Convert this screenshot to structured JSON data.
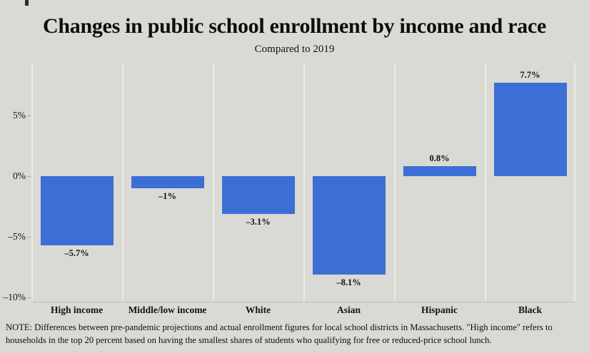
{
  "chart_data": {
    "type": "bar",
    "title": "Changes in public school enrollment by income and race",
    "subtitle": "Compared to 2019",
    "categories": [
      "High income",
      "Middle/low income",
      "White",
      "Asian",
      "Hispanic",
      "Black"
    ],
    "values": [
      -5.7,
      -1,
      -3.1,
      -8.1,
      0.8,
      7.7
    ],
    "bar_labels": [
      "–5.7%",
      "–1%",
      "–3.1%",
      "–8.1%",
      "0.8%",
      "7.7%"
    ],
    "y_ticks": [
      {
        "value": 5,
        "label": "5%"
      },
      {
        "value": 0,
        "label": "0%"
      },
      {
        "value": -5,
        "label": "–5%"
      },
      {
        "value": -10,
        "label": "–10%"
      }
    ],
    "ylim": [
      -10.4,
      9.4
    ],
    "xlabel": "",
    "ylabel": "",
    "legend": "none",
    "grid": "vertical panel dividers only",
    "bar_color": "#3c6ed5"
  },
  "note": "NOTE: Differences between pre-pandemic projections and actual enrollment figures for local school districts in Massachusetts. \"High income\" refers to households in the top 20 percent based on having the smallest shares of students who qualifying for free or reduced-price school lunch.",
  "colors": {
    "background": "#dadad4",
    "bar": "#3c6ed5",
    "axis_line": "#bdbdb7",
    "divider": "#ecece6",
    "text": "#111111"
  }
}
